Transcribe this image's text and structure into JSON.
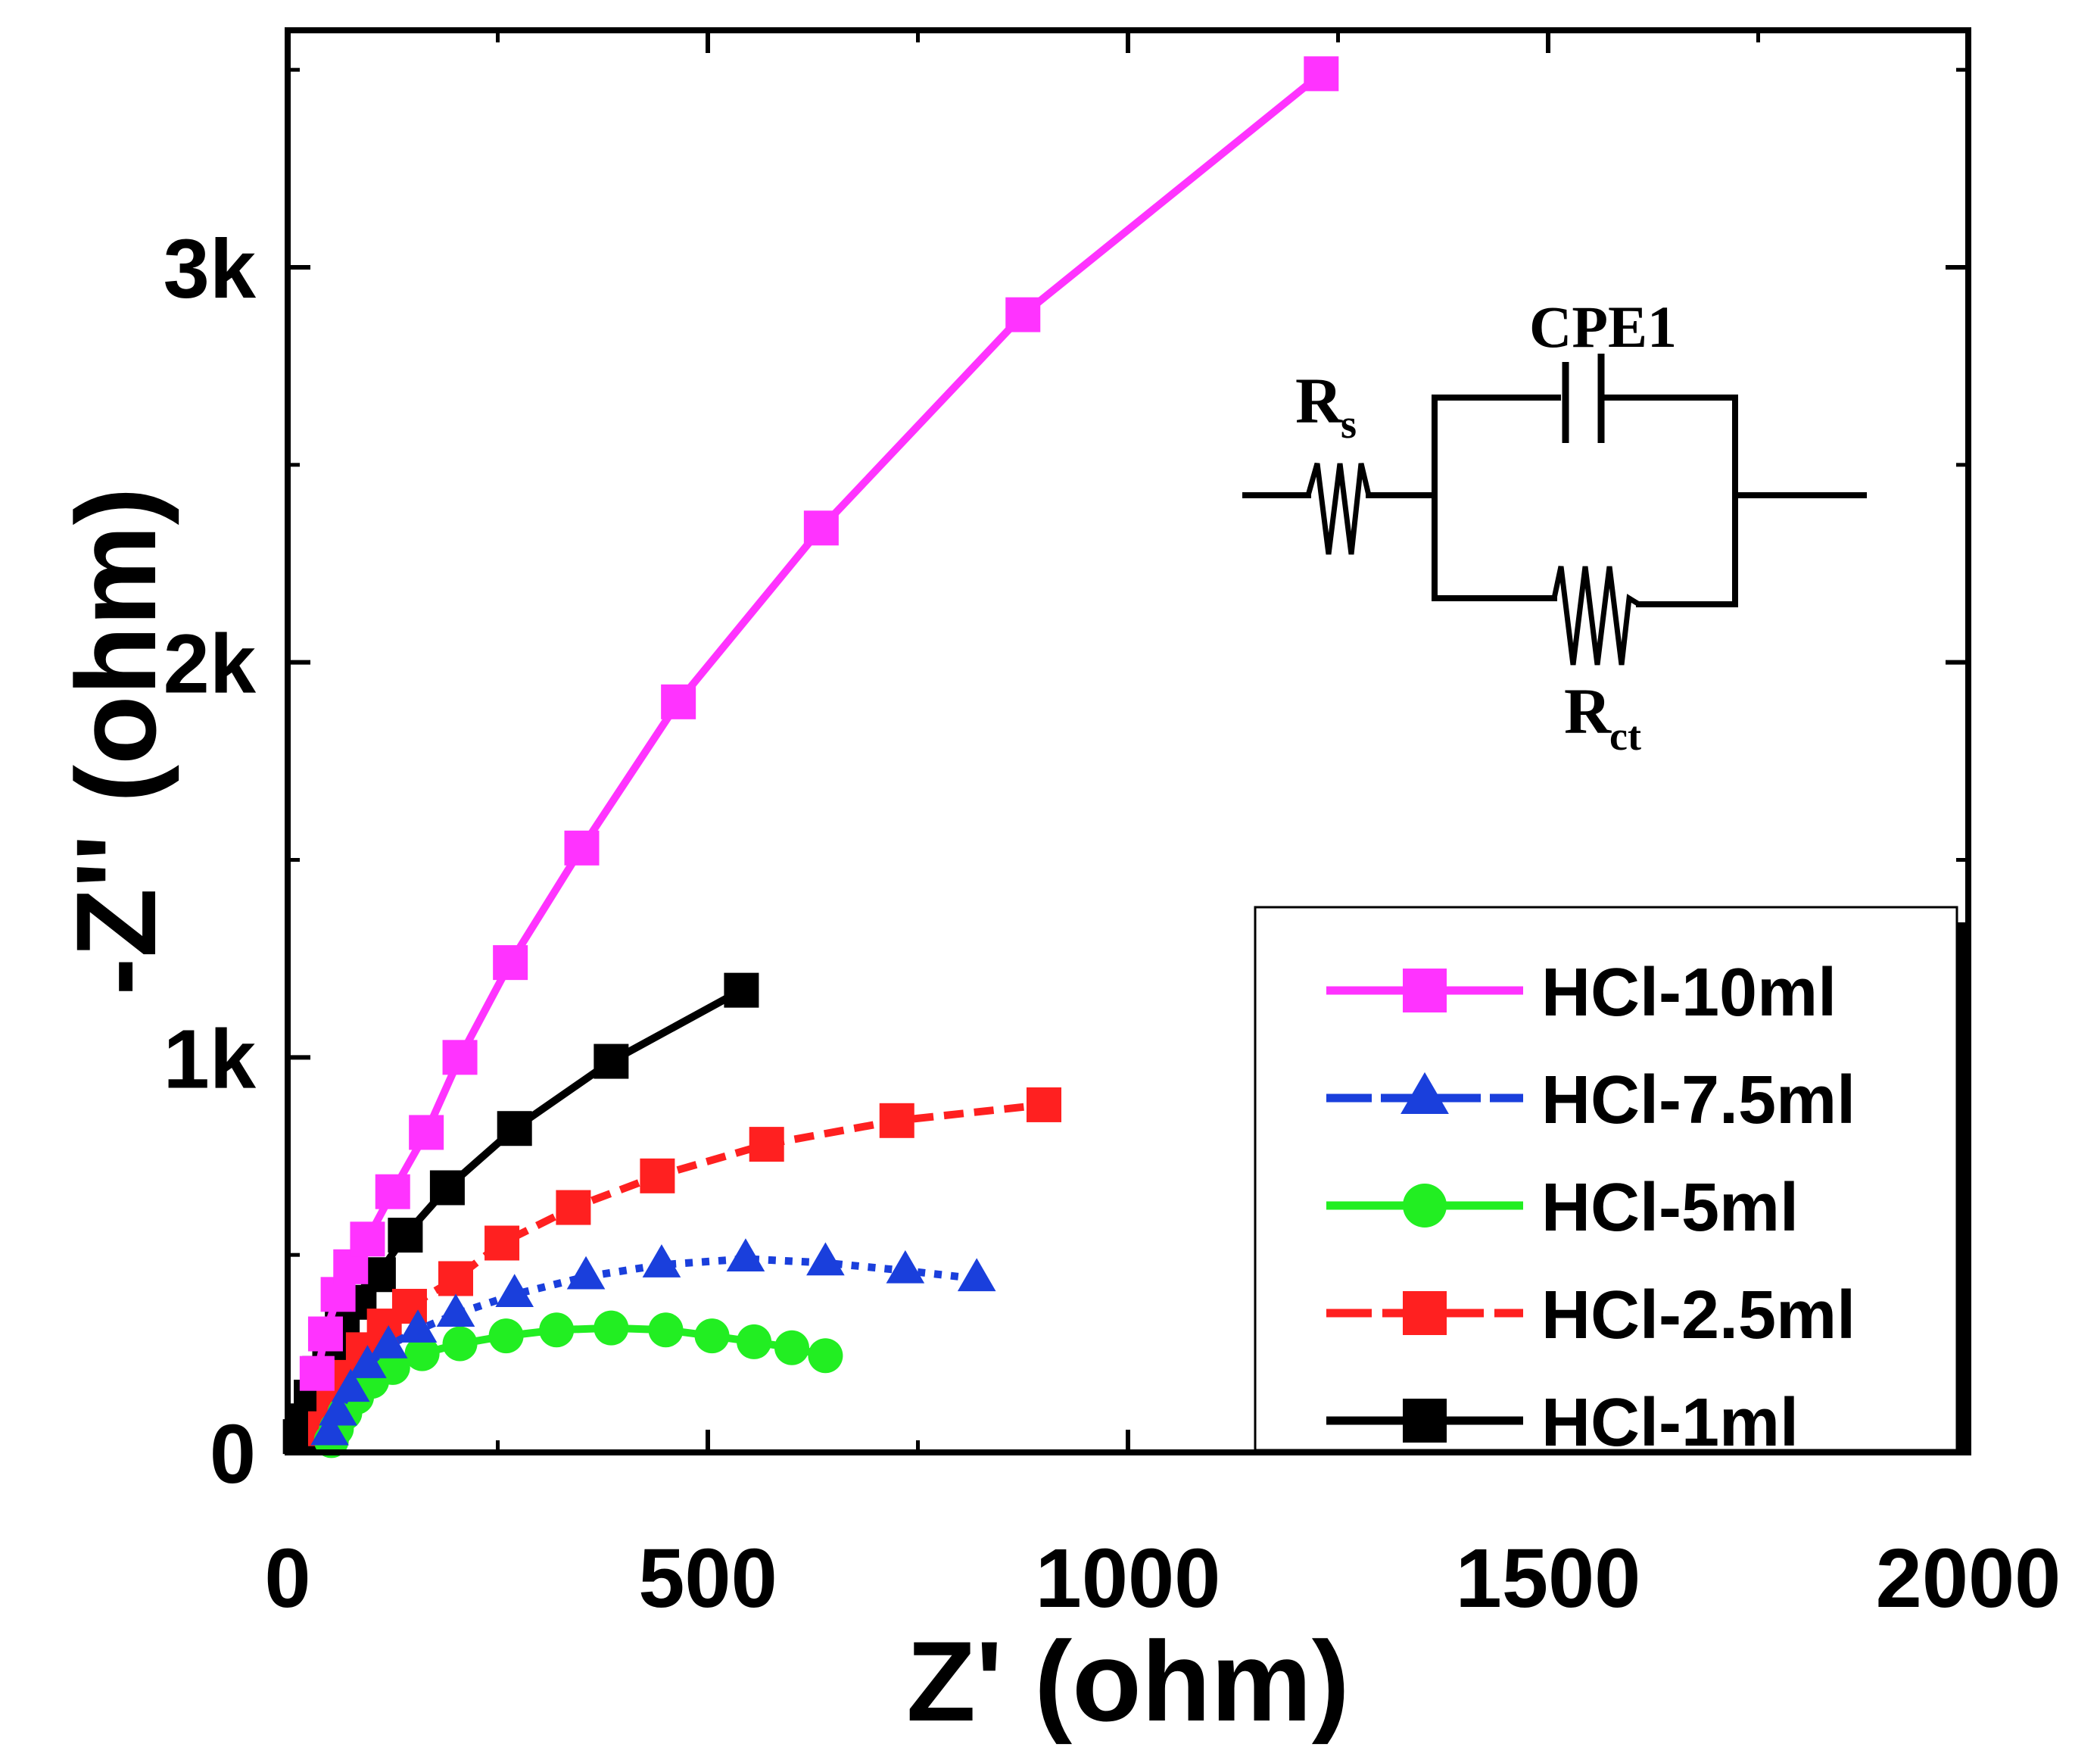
{
  "chart_data": {
    "type": "scatter",
    "title": "",
    "xlabel": "Z' (ohm)",
    "ylabel": "-Z'' (ohm)",
    "xlim": [
      0,
      2000
    ],
    "ylim": [
      0,
      3600
    ],
    "grid": false,
    "legend_position": "bottom-right",
    "x_ticks": [
      {
        "value": 0,
        "label": "0"
      },
      {
        "value": 500,
        "label": "500"
      },
      {
        "value": 1000,
        "label": "1000"
      },
      {
        "value": 1500,
        "label": "1500"
      },
      {
        "value": 2000,
        "label": "2000"
      }
    ],
    "y_ticks": [
      {
        "value": 0,
        "label": "0"
      },
      {
        "value": 1000,
        "label": "1k"
      },
      {
        "value": 2000,
        "label": "2k"
      },
      {
        "value": 3000,
        "label": "3k"
      }
    ],
    "series": [
      {
        "name": "HCl-10ml",
        "color": "#ff33ff",
        "marker": "square",
        "linestyle": "solid",
        "points": [
          [
            35,
            200
          ],
          [
            45,
            300
          ],
          [
            60,
            400
          ],
          [
            75,
            470
          ],
          [
            95,
            540
          ],
          [
            125,
            660
          ],
          [
            165,
            810
          ],
          [
            205,
            1000
          ],
          [
            265,
            1240
          ],
          [
            350,
            1530
          ],
          [
            465,
            1900
          ],
          [
            635,
            2340
          ],
          [
            875,
            2880
          ],
          [
            1230,
            3490
          ]
        ]
      },
      {
        "name": "HCl-7.5ml",
        "color": "#1a3fdc",
        "marker": "triangle",
        "linestyle": "dotted",
        "points": [
          [
            50,
            50
          ],
          [
            60,
            100
          ],
          [
            75,
            160
          ],
          [
            95,
            220
          ],
          [
            120,
            270
          ],
          [
            155,
            310
          ],
          [
            200,
            350
          ],
          [
            270,
            400
          ],
          [
            355,
            445
          ],
          [
            445,
            475
          ],
          [
            545,
            490
          ],
          [
            640,
            480
          ],
          [
            735,
            460
          ],
          [
            820,
            440
          ]
        ]
      },
      {
        "name": "HCl-5ml",
        "color": "#22ee22",
        "marker": "circle",
        "linestyle": "solid",
        "points": [
          [
            52,
            30
          ],
          [
            58,
            60
          ],
          [
            68,
            100
          ],
          [
            82,
            140
          ],
          [
            100,
            180
          ],
          [
            125,
            215
          ],
          [
            160,
            250
          ],
          [
            205,
            275
          ],
          [
            260,
            295
          ],
          [
            320,
            310
          ],
          [
            385,
            315
          ],
          [
            450,
            310
          ],
          [
            505,
            295
          ],
          [
            555,
            280
          ],
          [
            600,
            265
          ],
          [
            640,
            245
          ]
        ]
      },
      {
        "name": "HCl-2.5ml",
        "color": "#ff2020",
        "marker": "square",
        "linestyle": "dashed",
        "points": [
          [
            45,
            60
          ],
          [
            55,
            120
          ],
          [
            70,
            190
          ],
          [
            90,
            260
          ],
          [
            115,
            320
          ],
          [
            145,
            370
          ],
          [
            200,
            440
          ],
          [
            255,
            530
          ],
          [
            340,
            620
          ],
          [
            440,
            700
          ],
          [
            570,
            780
          ],
          [
            725,
            840
          ],
          [
            900,
            880
          ]
        ]
      },
      {
        "name": "HCl-1ml",
        "color": "#000000",
        "marker": "square",
        "linestyle": "solid",
        "points": [
          [
            15,
            40
          ],
          [
            20,
            80
          ],
          [
            28,
            140
          ],
          [
            38,
            200
          ],
          [
            50,
            260
          ],
          [
            65,
            320
          ],
          [
            85,
            380
          ],
          [
            108,
            450
          ],
          [
            140,
            550
          ],
          [
            190,
            670
          ],
          [
            270,
            820
          ],
          [
            385,
            990
          ],
          [
            540,
            1170
          ]
        ]
      }
    ],
    "legend_order": [
      "HCl-10ml",
      "HCl-7.5ml",
      "HCl-5ml",
      "HCl-2.5ml",
      "HCl-1ml"
    ],
    "inset": {
      "type": "equivalent-circuit",
      "labels": {
        "cpe": "CPE1",
        "rs_main": "R",
        "rs_sub": "s",
        "rct_main": "R",
        "rct_sub": "ct"
      }
    }
  }
}
